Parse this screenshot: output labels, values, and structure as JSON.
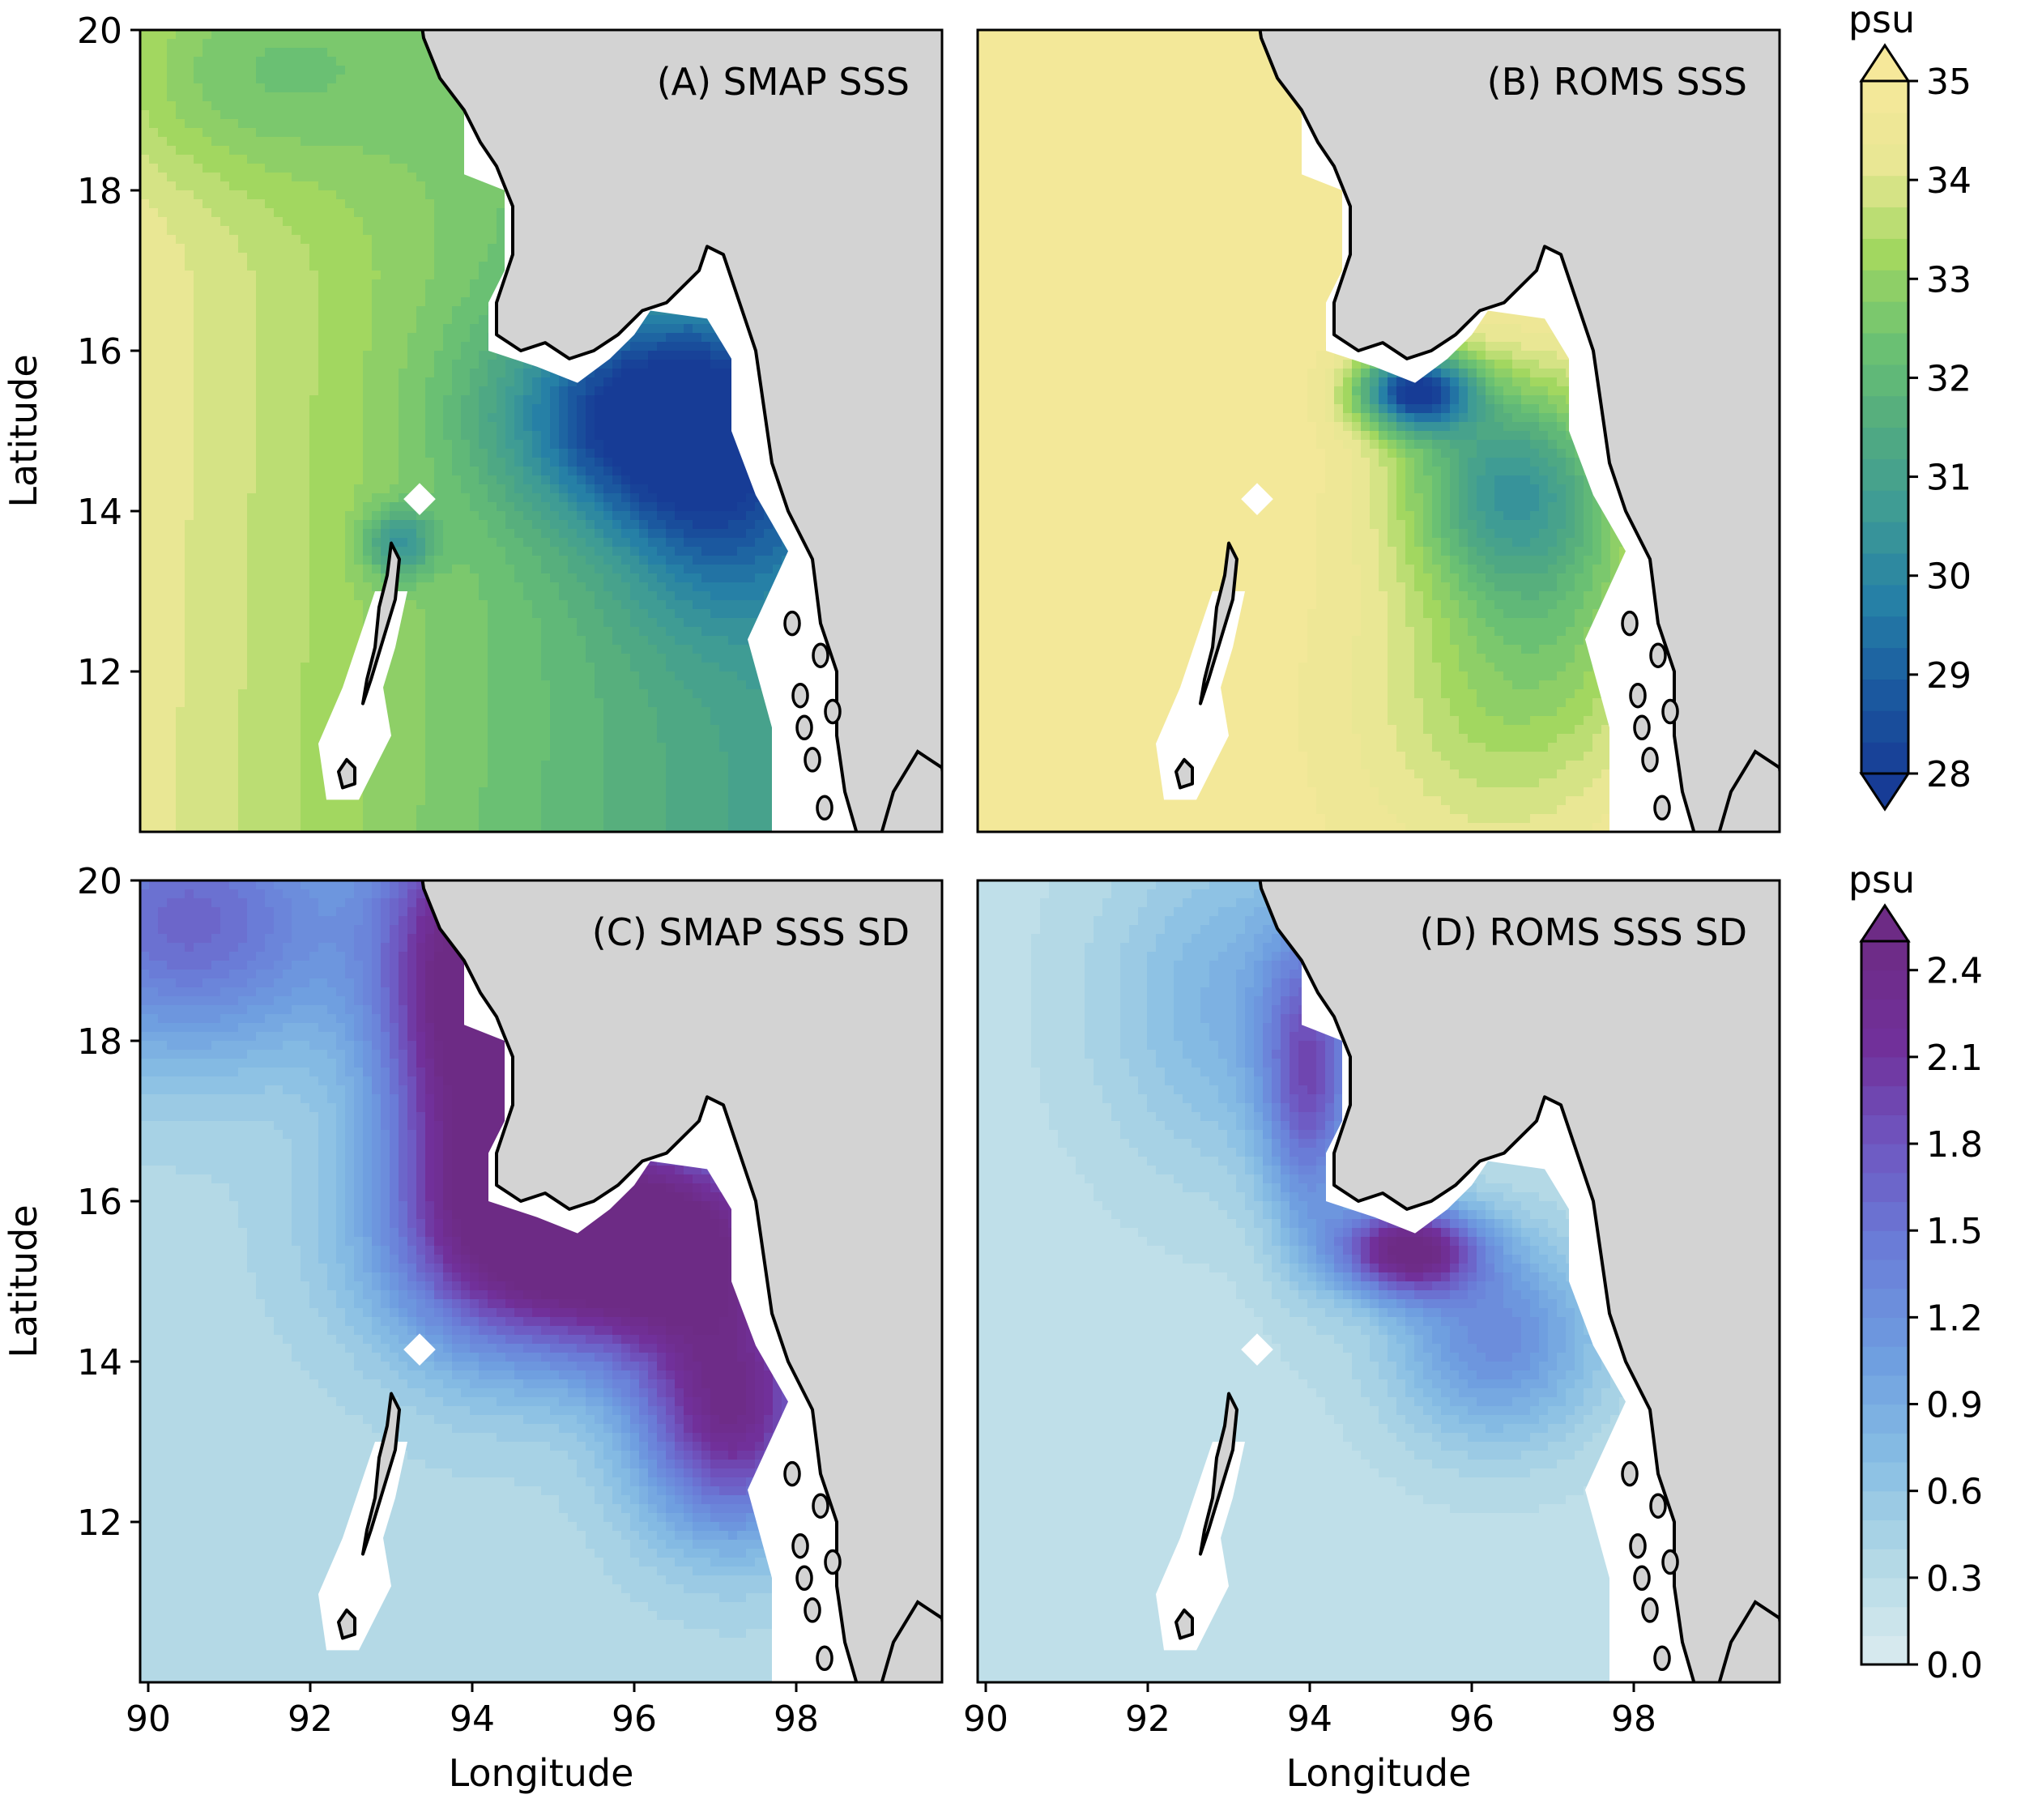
{
  "chart_data": [
    {
      "type": "heatmap",
      "title": "(A) SMAP SSS",
      "ylabel": "Latitude",
      "xlabel": "",
      "xlim": [
        89.9,
        99.8
      ],
      "ylim": [
        10.0,
        20.0
      ],
      "variable": "sea surface salinity",
      "colorbar": "salinity",
      "fields": {
        "base": 32.6,
        "gradient": [
          -0.42,
          0.02
        ],
        "plumes": [
          {
            "lon": 96.3,
            "lat": 15.2,
            "amp": -4.6,
            "sx": 1.3,
            "sy": 0.9
          },
          {
            "lon": 93.1,
            "lat": 13.6,
            "amp": -2.5,
            "sx": 0.3,
            "sy": 0.3
          },
          {
            "lon": 91.0,
            "lat": 19.5,
            "amp": -1.4,
            "sx": 1.5,
            "sy": 1.0
          },
          {
            "lon": 97.0,
            "lat": 13.8,
            "amp": -1.8,
            "sx": 0.9,
            "sy": 1.0
          }
        ]
      }
    },
    {
      "type": "heatmap",
      "title": "(B) ROMS SSS",
      "ylabel": "",
      "xlabel": "",
      "xlim": [
        89.9,
        99.8
      ],
      "ylim": [
        10.0,
        20.0
      ],
      "variable": "sea surface salinity",
      "colorbar": "salinity",
      "fields": {
        "base": 34.9,
        "gradient": [
          0.0,
          0.0
        ],
        "plumes": [
          {
            "lon": 95.3,
            "lat": 15.5,
            "amp": -6.5,
            "sx": 0.5,
            "sy": 0.35
          },
          {
            "lon": 96.4,
            "lat": 14.4,
            "amp": -3.3,
            "sx": 0.9,
            "sy": 0.9
          },
          {
            "lon": 97.0,
            "lat": 13.0,
            "amp": -1.8,
            "sx": 1.0,
            "sy": 1.5
          },
          {
            "lon": 96.0,
            "lat": 11.5,
            "amp": -1.0,
            "sx": 1.2,
            "sy": 1.5
          }
        ]
      }
    },
    {
      "type": "heatmap",
      "title": "(C) SMAP SSS SD",
      "ylabel": "Latitude",
      "xlabel": "Longitude",
      "xlim": [
        89.9,
        99.8
      ],
      "ylim": [
        10.0,
        20.0
      ],
      "variable": "salinity standard deviation",
      "colorbar": "sd",
      "fields": {
        "base": 0.35,
        "gradient": [
          0.0,
          0.0
        ],
        "plumes": [
          {
            "lon": 95.8,
            "lat": 15.5,
            "amp": 2.8,
            "sx": 1.6,
            "sy": 1.0
          },
          {
            "lon": 94.0,
            "lat": 18.5,
            "amp": 2.4,
            "sx": 0.8,
            "sy": 2.0
          },
          {
            "lon": 97.2,
            "lat": 13.3,
            "amp": 1.9,
            "sx": 0.8,
            "sy": 1.0
          },
          {
            "lon": 90.5,
            "lat": 19.5,
            "amp": 1.3,
            "sx": 1.5,
            "sy": 1.2
          }
        ]
      }
    },
    {
      "type": "heatmap",
      "title": "(D) ROMS SSS SD",
      "ylabel": "",
      "xlabel": "Longitude",
      "xlim": [
        89.9,
        99.8
      ],
      "ylim": [
        10.0,
        20.0
      ],
      "variable": "salinity standard deviation",
      "colorbar": "sd",
      "fields": {
        "base": 0.25,
        "gradient": [
          0.0,
          0.0
        ],
        "plumes": [
          {
            "lon": 95.2,
            "lat": 15.4,
            "amp": 2.2,
            "sx": 0.6,
            "sy": 0.4
          },
          {
            "lon": 94.0,
            "lat": 17.5,
            "amp": 1.3,
            "sx": 0.4,
            "sy": 1.3
          },
          {
            "lon": 96.3,
            "lat": 14.3,
            "amp": 1.0,
            "sx": 0.9,
            "sy": 0.9
          },
          {
            "lon": 93.2,
            "lat": 18.5,
            "amp": 0.6,
            "sx": 1.2,
            "sy": 1.5
          }
        ]
      }
    }
  ],
  "axes": {
    "x_ticks": [
      90,
      92,
      94,
      96,
      98
    ],
    "y_ticks": [
      12,
      14,
      16,
      18,
      20
    ]
  },
  "colorbars": {
    "salinity": {
      "label": "psu",
      "min": 28,
      "max": 35,
      "ticks": [
        28,
        29,
        30,
        31,
        32,
        33,
        34,
        35
      ],
      "extend": "both",
      "levels": 22,
      "colors": [
        "#173c96",
        "#1b5ba0",
        "#2680a6",
        "#3d9a96",
        "#52ab80",
        "#6cc272",
        "#a2d760",
        "#e8e793",
        "#f6e89a"
      ]
    },
    "sd": {
      "label": "psu",
      "min": 0.0,
      "max": 2.5,
      "ticks": [
        "0.0",
        "0.3",
        "0.6",
        "0.9",
        "1.2",
        "1.5",
        "1.8",
        "2.1",
        "2.4"
      ],
      "extend": "max",
      "levels": 25,
      "colors": [
        "#dcecef",
        "#b3d9e6",
        "#86bde3",
        "#6e9de0",
        "#6a7ed8",
        "#6e58c2",
        "#71309a",
        "#6d2b85"
      ]
    }
  },
  "colors": {
    "land": "#d3d3d3",
    "coast": "#000000",
    "mask": "#ffffff"
  }
}
